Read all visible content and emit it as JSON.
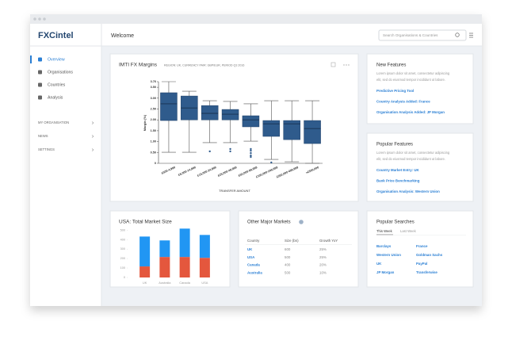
{
  "window": {
    "logo": "FXCintel",
    "page_title": "Welcome",
    "search_placeholder": "Search Organisations & Countries"
  },
  "sidebar": {
    "nav": [
      "Overview",
      "Organisations",
      "Countries",
      "Analysis"
    ],
    "sections": [
      "MY ORGANISATION",
      "NEWS",
      "SETTINGS"
    ]
  },
  "fx_margins": {
    "type": "box",
    "title": "IMTI FX Margins",
    "subtitle": "REGION: UK, CURRENCY PAIR: GBP/EUR, PERIOD Q3 2016",
    "x_label": "TRANSFER AMOUNT",
    "y_label": "Margin (%)",
    "color": "#2f5b8c",
    "categories": [
      "£500-4,999",
      "£5,000-14,999",
      "£15,000-24,999",
      "£25,000-49,999",
      "£50,000-99,999",
      "£100,000-249,999",
      "£250,000-499,999",
      ">£500,000"
    ],
    "max": [
      3.76,
      3.32,
      2.88,
      2.85,
      2.74,
      2.88,
      2.88,
      2.88
    ],
    "q3": [
      3.25,
      3.1,
      2.66,
      2.48,
      2.19,
      1.97,
      1.97,
      1.97
    ],
    "median": [
      2.74,
      2.55,
      2.3,
      2.26,
      2.0,
      1.82,
      1.82,
      1.6
    ],
    "q1": [
      1.97,
      2.0,
      2.0,
      2.0,
      1.68,
      1.24,
      1.09,
      0.91
    ],
    "min": [
      0.51,
      0.51,
      0.95,
      0.95,
      1.02,
      0.18,
      0.07,
      0
    ],
    "outliers": [
      [],
      [],
      [
        0.55
      ],
      [
        0.66,
        0.55
      ],
      [
        0.66,
        0.58,
        0.47,
        0.36,
        0.29
      ],
      [
        0.04
      ],
      [],
      []
    ],
    "ylim": [
      0,
      3.76
    ],
    "yticks": [
      0,
      {
        "value": 0.5,
        "label": "0.50"
      },
      {
        "value": 1,
        "label": "1.00"
      },
      {
        "value": 1.5,
        "label": "1.50"
      },
      {
        "value": 2,
        "label": "2.00"
      },
      {
        "value": 2.5,
        "label": "2.50"
      },
      {
        "value": 3,
        "label": "3.00"
      },
      {
        "value": 3.5,
        "label": "3.50"
      },
      3.76
    ]
  },
  "usa_market": {
    "type": "bar",
    "stacked": true,
    "title": "USA: Total Market Size",
    "categories": [
      "UK",
      "Australia",
      "Canada",
      "USA"
    ],
    "series": [
      {
        "color": "#e4573d",
        "values": [
          117,
          217,
          217,
          208
        ]
      },
      {
        "color": "#2196f3",
        "values": [
          316,
          175,
          300,
          242
        ]
      }
    ],
    "ylim": [
      0,
      520
    ],
    "yticks": [
      0,
      100,
      200,
      300,
      400,
      500
    ]
  },
  "markets": {
    "title": "Other Major Markets",
    "columns": [
      "Country",
      "Size (bn)",
      "Growth YoY"
    ],
    "rows": [
      [
        "UK",
        "600",
        "25%"
      ],
      [
        "USA",
        "500",
        "25%"
      ],
      [
        "Canada",
        "400",
        "20%"
      ],
      [
        "Australia",
        "500",
        "10%"
      ]
    ]
  },
  "new_features": {
    "title": "New Features",
    "text": [
      "Lorem ipsum dolor sit amet, consectetur adipiscing",
      "elit, sed do eiusmod tempor incididunt ut labore."
    ],
    "links": [
      "Predictive Pricing Tool",
      "Country Analysis Added: France",
      "Organisation Analysis Added: JP Morgan"
    ]
  },
  "popular_features": {
    "title": "Popular Features",
    "text": [
      "Lorem ipsum dolor sit amet, consectetur adipiscing",
      "elit, sed do eiusmod tempor incididunt ut labore."
    ],
    "links": [
      "Country Market Entry: UK",
      "Bank Price Benchmarking",
      "Organisation Analysis: Western Union"
    ]
  },
  "popular_searches": {
    "title": "Popular Searches",
    "tabs": [
      "This Week",
      "Last Week"
    ],
    "links": [
      "Barclays",
      "France",
      "Western Union",
      "Goldman Sachs",
      "UK",
      "PayPal",
      "JP Morgan",
      "Transferwise"
    ]
  }
}
